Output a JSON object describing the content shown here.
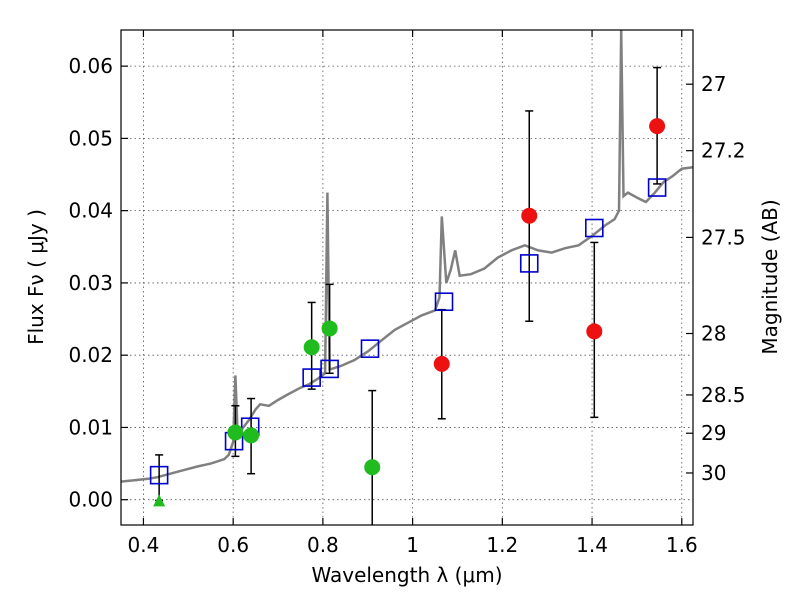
{
  "chart_data": {
    "type": "scatter",
    "title": "",
    "xlabel": "Wavelength  λ (μm)",
    "ylabel": "Flux  Fν  ( μJy )",
    "y2label": "Magnitude (AB)",
    "xlim": [
      0.35,
      1.625
    ],
    "ylim": [
      -0.0035,
      0.065
    ],
    "grid": true,
    "x_ticks": [
      0.4,
      0.6,
      0.8,
      1.0,
      1.2,
      1.4,
      1.6
    ],
    "x_tick_labels": [
      "0.4",
      "0.6",
      "0.8",
      "1",
      "1.2",
      "1.4",
      "1.6"
    ],
    "y_ticks": [
      0.0,
      0.01,
      0.02,
      0.03,
      0.04,
      0.05,
      0.06
    ],
    "y_tick_labels": [
      "0.00",
      "0.01",
      "0.02",
      "0.03",
      "0.04",
      "0.05",
      "0.06"
    ],
    "y2_ticks": [
      {
        "flux": 0.0575,
        "label": "27"
      },
      {
        "flux": 0.0483,
        "label": "27.2"
      },
      {
        "flux": 0.0363,
        "label": "27.5"
      },
      {
        "flux": 0.023,
        "label": "28"
      },
      {
        "flux": 0.0145,
        "label": "28.5"
      },
      {
        "flux": 0.0092,
        "label": "29"
      },
      {
        "flux": 0.0037,
        "label": "30"
      }
    ],
    "model_spectrum": {
      "color": "#808080",
      "points": [
        [
          0.35,
          0.0025
        ],
        [
          0.38,
          0.0027
        ],
        [
          0.41,
          0.0029
        ],
        [
          0.43,
          0.0031
        ],
        [
          0.46,
          0.0036
        ],
        [
          0.49,
          0.0041
        ],
        [
          0.52,
          0.0046
        ],
        [
          0.55,
          0.005
        ],
        [
          0.58,
          0.0056
        ],
        [
          0.59,
          0.0062
        ],
        [
          0.6,
          0.008
        ],
        [
          0.605,
          0.0172
        ],
        [
          0.61,
          0.0092
        ],
        [
          0.62,
          0.0098
        ],
        [
          0.635,
          0.011
        ],
        [
          0.65,
          0.0125
        ],
        [
          0.66,
          0.0132
        ],
        [
          0.68,
          0.013
        ],
        [
          0.7,
          0.0138
        ],
        [
          0.72,
          0.0145
        ],
        [
          0.75,
          0.0155
        ],
        [
          0.77,
          0.016
        ],
        [
          0.79,
          0.0168
        ],
        [
          0.805,
          0.0175
        ],
        [
          0.81,
          0.0425
        ],
        [
          0.815,
          0.018
        ],
        [
          0.84,
          0.0185
        ],
        [
          0.87,
          0.0193
        ],
        [
          0.9,
          0.0205
        ],
        [
          0.93,
          0.022
        ],
        [
          0.96,
          0.0235
        ],
        [
          0.99,
          0.0245
        ],
        [
          1.02,
          0.0255
        ],
        [
          1.05,
          0.0262
        ],
        [
          1.06,
          0.028
        ],
        [
          1.065,
          0.0392
        ],
        [
          1.075,
          0.03
        ],
        [
          1.085,
          0.0318
        ],
        [
          1.095,
          0.0345
        ],
        [
          1.105,
          0.031
        ],
        [
          1.13,
          0.0312
        ],
        [
          1.16,
          0.032
        ],
        [
          1.19,
          0.0335
        ],
        [
          1.22,
          0.0345
        ],
        [
          1.25,
          0.0352
        ],
        [
          1.28,
          0.0345
        ],
        [
          1.31,
          0.0342
        ],
        [
          1.34,
          0.0348
        ],
        [
          1.37,
          0.0352
        ],
        [
          1.4,
          0.0365
        ],
        [
          1.43,
          0.038
        ],
        [
          1.45,
          0.0388
        ],
        [
          1.46,
          0.04
        ],
        [
          1.465,
          0.065
        ],
        [
          1.47,
          0.042
        ],
        [
          1.48,
          0.0425
        ],
        [
          1.5,
          0.0418
        ],
        [
          1.52,
          0.0412
        ],
        [
          1.54,
          0.0425
        ],
        [
          1.56,
          0.044
        ],
        [
          1.58,
          0.0448
        ],
        [
          1.6,
          0.0458
        ],
        [
          1.625,
          0.046
        ]
      ]
    },
    "series": [
      {
        "marker": "square-open",
        "color": "#0000cc",
        "points": [
          [
            0.435,
            0.0034
          ],
          [
            0.602,
            0.0081
          ],
          [
            0.638,
            0.0101
          ],
          [
            0.775,
            0.0169
          ],
          [
            0.815,
            0.0181
          ],
          [
            0.905,
            0.0209
          ],
          [
            1.07,
            0.0274
          ],
          [
            1.26,
            0.0327
          ],
          [
            1.405,
            0.0376
          ],
          [
            1.545,
            0.0432
          ]
        ]
      },
      {
        "marker": "circle",
        "color": "#1fbb1f",
        "points": [
          {
            "x": 0.605,
            "y": 0.0093,
            "lo": 0.006,
            "hi": 0.013
          },
          {
            "x": 0.64,
            "y": 0.0089,
            "lo": 0.0036,
            "hi": 0.014
          },
          {
            "x": 0.775,
            "y": 0.0211,
            "lo": 0.0153,
            "hi": 0.0273
          },
          {
            "x": 0.815,
            "y": 0.0237,
            "lo": 0.0175,
            "hi": 0.0298
          },
          {
            "x": 0.91,
            "y": 0.0045,
            "lo": -0.0035,
            "hi": 0.0151
          }
        ]
      },
      {
        "marker": "circle",
        "color": "#ee1111",
        "points": [
          {
            "x": 1.065,
            "y": 0.0188,
            "lo": 0.0112,
            "hi": 0.0263
          },
          {
            "x": 1.26,
            "y": 0.0393,
            "lo": 0.0247,
            "hi": 0.0538
          },
          {
            "x": 1.405,
            "y": 0.0233,
            "lo": 0.0114,
            "hi": 0.0356
          },
          {
            "x": 1.545,
            "y": 0.0517,
            "lo": 0.0437,
            "hi": 0.0598
          }
        ]
      },
      {
        "marker": "triangle",
        "color": "#1fbb1f",
        "points": [
          {
            "x": 0.435,
            "y": -0.0001,
            "lo": -0.0001,
            "hi": 0.0062
          }
        ]
      }
    ]
  }
}
